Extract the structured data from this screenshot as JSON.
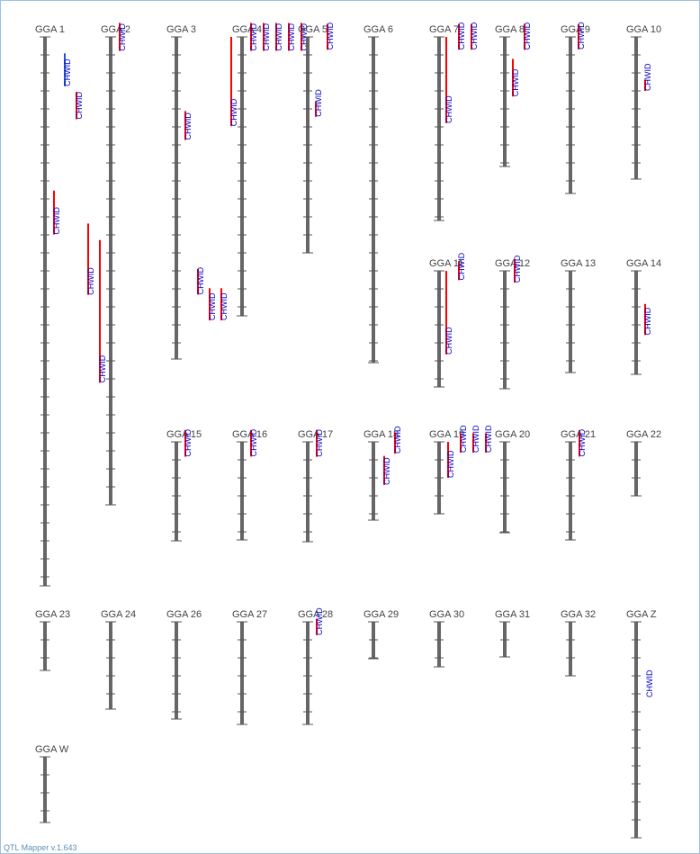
{
  "app": {
    "version_label": "QTL Mapper v.1.643"
  },
  "colors": {
    "chromosome": "#666666",
    "tick": "#555555",
    "qtl_significant": "#ff0000",
    "qtl_suggestive": "#2255cc",
    "qtl_label": "#0000cc",
    "chromosome_label": "#444444"
  },
  "trait_label": "CHWID",
  "chromosomes": [
    {
      "name": "GGA 1",
      "qtls": [
        {
          "start": 0.03,
          "end": 0.09,
          "color": "blue",
          "label": true
        },
        {
          "start": 0.1,
          "end": 0.15,
          "color": "red",
          "label": true
        },
        {
          "start": 0.28,
          "end": 0.36,
          "color": "red",
          "label": true
        },
        {
          "start": 0.34,
          "end": 0.47,
          "color": "red",
          "label": true
        },
        {
          "start": 0.37,
          "end": 0.63,
          "color": "red",
          "label": true
        }
      ]
    },
    {
      "name": "GGA 2",
      "qtls": [
        {
          "start": -0.03,
          "end": 0.03,
          "color": "red",
          "label": true
        }
      ]
    },
    {
      "name": "GGA 3",
      "qtls": [
        {
          "start": 0.23,
          "end": 0.32,
          "color": "red",
          "label": true
        },
        {
          "start": 0.72,
          "end": 0.8,
          "color": "red",
          "label": true
        },
        {
          "start": 0.78,
          "end": 0.88,
          "color": "red",
          "label": true
        },
        {
          "start": 0.78,
          "end": 0.88,
          "color": "red",
          "label": true
        }
      ]
    },
    {
      "name": "GGA 4",
      "qtls": [
        {
          "start": 0.0,
          "end": 0.32,
          "color": "red",
          "label": true
        },
        {
          "start": -0.05,
          "end": 0.05,
          "color": "red",
          "label": true
        },
        {
          "start": -0.05,
          "end": 0.05,
          "color": "red",
          "label": true
        },
        {
          "start": -0.05,
          "end": 0.05,
          "color": "red",
          "label": true
        },
        {
          "start": -0.05,
          "end": 0.05,
          "color": "red",
          "label": true
        },
        {
          "start": -0.05,
          "end": 0.05,
          "color": "red",
          "label": true
        }
      ]
    },
    {
      "name": "GGA 5",
      "qtls": [
        {
          "start": 0.3,
          "end": 0.37,
          "color": "red",
          "label": true
        },
        {
          "start": -0.06,
          "end": 0.06,
          "color": "red",
          "label": true
        }
      ]
    },
    {
      "name": "GGA 6",
      "qtls": []
    },
    {
      "name": "GGA 7",
      "qtls": [
        {
          "start": 0.0,
          "end": 0.47,
          "color": "red",
          "label": true
        },
        {
          "start": -0.07,
          "end": 0.07,
          "color": "red",
          "label": true
        },
        {
          "start": -0.07,
          "end": 0.07,
          "color": "red",
          "label": true
        }
      ]
    },
    {
      "name": "GGA 8",
      "qtls": [
        {
          "start": 0.17,
          "end": 0.46,
          "color": "red",
          "label": true
        },
        {
          "start": -0.1,
          "end": 0.1,
          "color": "red",
          "label": true
        }
      ]
    },
    {
      "name": "GGA 9",
      "qtls": [
        {
          "start": -0.08,
          "end": 0.08,
          "color": "red",
          "label": true
        }
      ]
    },
    {
      "name": "GGA 10",
      "qtls": [
        {
          "start": 0.3,
          "end": 0.38,
          "color": "red",
          "label": true
        }
      ]
    },
    {
      "name": "GGA 11",
      "qtls": [
        {
          "start": 0.0,
          "end": 0.72,
          "color": "red",
          "label": true
        },
        {
          "start": -0.08,
          "end": 0.08,
          "color": "red",
          "label": true
        }
      ]
    },
    {
      "name": "GGA 12",
      "qtls": [
        {
          "start": -0.1,
          "end": 0.1,
          "color": "red",
          "label": true
        }
      ]
    },
    {
      "name": "GGA 13",
      "qtls": []
    },
    {
      "name": "GGA 14",
      "qtls": [
        {
          "start": 0.32,
          "end": 0.62,
          "color": "red",
          "label": true
        }
      ]
    },
    {
      "name": "GGA 15",
      "qtls": [
        {
          "start": -0.12,
          "end": 0.15,
          "color": "red",
          "label": true
        }
      ]
    },
    {
      "name": "GGA 16",
      "qtls": [
        {
          "start": -0.12,
          "end": 0.15,
          "color": "red",
          "label": true
        }
      ]
    },
    {
      "name": "GGA 17",
      "qtls": [
        {
          "start": -0.12,
          "end": 0.15,
          "color": "red",
          "label": true
        }
      ]
    },
    {
      "name": "GGA 18",
      "qtls": [
        {
          "start": 0.18,
          "end": 0.55,
          "color": "red",
          "label": true
        },
        {
          "start": -0.12,
          "end": 0.15,
          "color": "red",
          "label": true
        }
      ]
    },
    {
      "name": "GGA 19",
      "qtls": [
        {
          "start": 0.0,
          "end": 0.5,
          "color": "red",
          "label": true
        },
        {
          "start": -0.12,
          "end": 0.15,
          "color": "red",
          "label": true
        },
        {
          "start": -0.12,
          "end": 0.15,
          "color": "red",
          "label": true
        },
        {
          "start": -0.12,
          "end": 0.15,
          "color": "red",
          "label": true
        }
      ]
    },
    {
      "name": "GGA 20",
      "qtls": []
    },
    {
      "name": "GGA 21",
      "qtls": [
        {
          "start": -0.12,
          "end": 0.15,
          "color": "red",
          "label": true
        }
      ]
    },
    {
      "name": "GGA 22",
      "qtls": []
    },
    {
      "name": "GGA 23",
      "qtls": []
    },
    {
      "name": "GGA 24",
      "qtls": []
    },
    {
      "name": "GGA 26",
      "qtls": []
    },
    {
      "name": "GGA 27",
      "qtls": []
    },
    {
      "name": "GGA 28",
      "qtls": [
        {
          "start": -0.03,
          "end": 0.13,
          "color": "red",
          "label": true
        }
      ]
    },
    {
      "name": "GGA 29",
      "qtls": []
    },
    {
      "name": "GGA 30",
      "qtls": []
    },
    {
      "name": "GGA 31",
      "qtls": []
    },
    {
      "name": "GGA 32",
      "qtls": []
    },
    {
      "name": "GGA Z",
      "qtls": [
        {
          "label_only": true,
          "start": 0.28,
          "end": 0.42
        }
      ]
    },
    {
      "name": "GGA W",
      "qtls": []
    }
  ]
}
